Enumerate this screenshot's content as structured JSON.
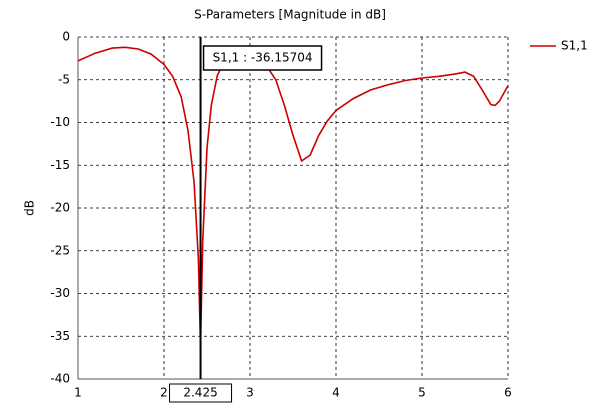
{
  "chart_data": {
    "type": "line",
    "title": "S-Parameters [Magnitude in dB]",
    "ylabel": "dB",
    "x": [
      1,
      1.2,
      1.4,
      1.55,
      1.7,
      1.85,
      2.0,
      2.1,
      2.2,
      2.28,
      2.35,
      2.4,
      2.425,
      2.45,
      2.5,
      2.55,
      2.62,
      2.7,
      2.8,
      2.9,
      3.0,
      3.1,
      3.2,
      3.3,
      3.4,
      3.5,
      3.6,
      3.7,
      3.8,
      3.9,
      4.0,
      4.2,
      4.4,
      4.6,
      4.8,
      5.0,
      5.2,
      5.4,
      5.5,
      5.6,
      5.7,
      5.8,
      5.85,
      5.9,
      5.95,
      6.0
    ],
    "series": [
      {
        "name": "S1,1",
        "color": "#cc0000",
        "values": [
          -2.8,
          -1.9,
          -1.3,
          -1.2,
          -1.4,
          -2.0,
          -3.2,
          -4.6,
          -7.0,
          -11.0,
          -17.0,
          -26.0,
          -36.15704,
          -24.0,
          -13.0,
          -8.0,
          -4.5,
          -2.8,
          -2.0,
          -1.8,
          -2.0,
          -2.5,
          -3.5,
          -5.0,
          -8.0,
          -11.5,
          -14.5,
          -13.8,
          -11.5,
          -9.8,
          -8.6,
          -7.2,
          -6.2,
          -5.6,
          -5.1,
          -4.8,
          -4.6,
          -4.3,
          -4.1,
          -4.6,
          -6.2,
          -7.9,
          -8.0,
          -7.5,
          -6.6,
          -5.7
        ]
      }
    ],
    "xlim": [
      1,
      6
    ],
    "xticks": [
      1,
      2,
      3,
      4,
      5,
      6
    ],
    "ylim": [
      -40,
      0
    ],
    "yticks": [
      0,
      -5,
      -10,
      -15,
      -20,
      -25,
      -30,
      -35,
      -40
    ],
    "grid": true,
    "legend": "right",
    "marker": {
      "x": 2.425,
      "label": "S1,1 : -36.15704"
    }
  }
}
